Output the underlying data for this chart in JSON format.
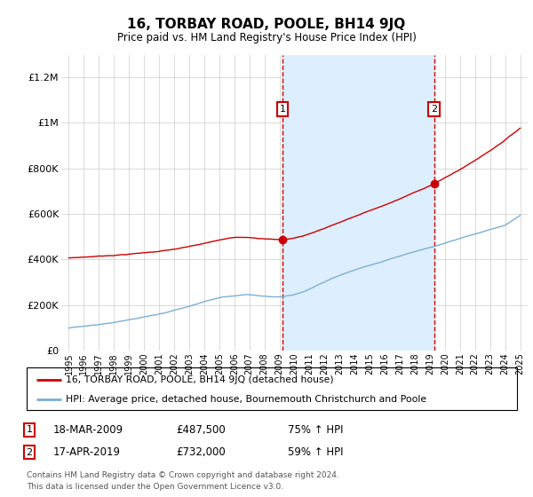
{
  "title": "16, TORBAY ROAD, POOLE, BH14 9JQ",
  "subtitle": "Price paid vs. HM Land Registry's House Price Index (HPI)",
  "purchase1": {
    "date": "18-MAR-2009",
    "price": 487500,
    "hpi_pct": "75% ↑ HPI",
    "x": 2009.21
  },
  "purchase2": {
    "date": "17-APR-2019",
    "price": 732000,
    "hpi_pct": "59% ↑ HPI",
    "x": 2019.29
  },
  "legend_line1": "16, TORBAY ROAD, POOLE, BH14 9JQ (detached house)",
  "legend_line2": "HPI: Average price, detached house, Bournemouth Christchurch and Poole",
  "footer": "Contains HM Land Registry data © Crown copyright and database right 2024.\nThis data is licensed under the Open Government Licence v3.0.",
  "hpi_color": "#7bafd4",
  "price_color": "#cc0000",
  "shade_color": "#ddeeff",
  "bg_color": "#ffffff",
  "ylim": [
    0,
    1300000
  ],
  "yticks": [
    0,
    200000,
    400000,
    600000,
    800000,
    1000000,
    1200000
  ],
  "ytick_labels": [
    "£0",
    "£200K",
    "£400K",
    "£600K",
    "£800K",
    "£1M",
    "£1.2M"
  ]
}
